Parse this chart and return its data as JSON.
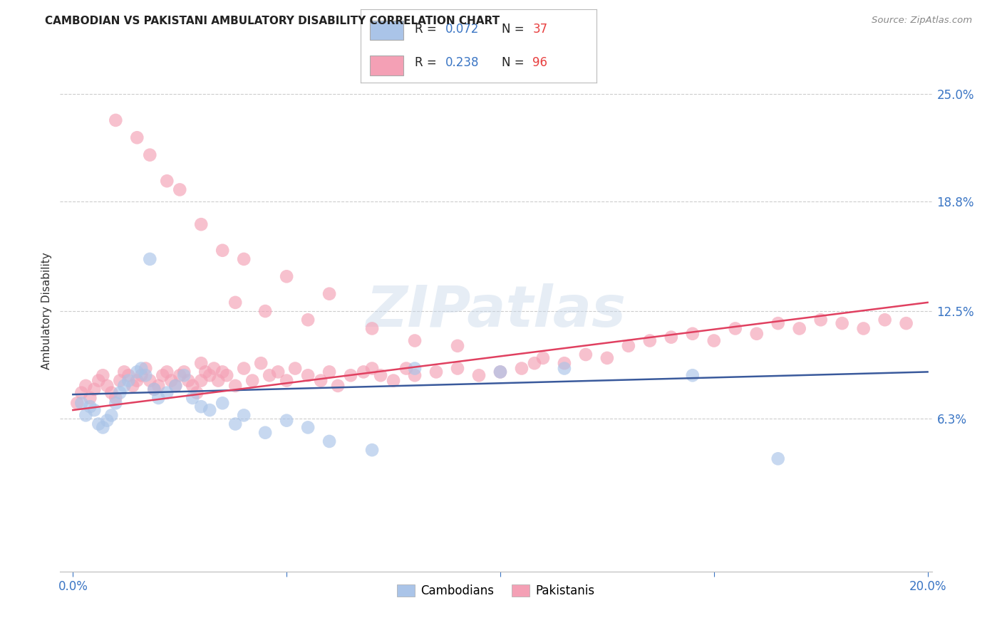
{
  "title": "CAMBODIAN VS PAKISTANI AMBULATORY DISABILITY CORRELATION CHART",
  "source": "Source: ZipAtlas.com",
  "ylabel": "Ambulatory Disability",
  "x_min": 0.0,
  "x_max": 0.2,
  "y_min": -0.025,
  "y_max": 0.275,
  "yticks": [
    0.063,
    0.125,
    0.188,
    0.25
  ],
  "ytick_labels": [
    "6.3%",
    "12.5%",
    "18.8%",
    "25.0%"
  ],
  "xticks": [
    0.0,
    0.05,
    0.1,
    0.15,
    0.2
  ],
  "xtick_labels": [
    "0.0%",
    "",
    "",
    "",
    "20.0%"
  ],
  "cambodian_color": "#aac4e8",
  "pakistani_color": "#f4a0b5",
  "line_cambodian_color": "#3a5a9c",
  "line_pakistani_color": "#e04060",
  "r_cambodian": 0.072,
  "n_cambodian": 37,
  "r_pakistani": 0.238,
  "n_pakistani": 96,
  "legend_r_color": "#3a75c4",
  "legend_n_color": "#e84040",
  "watermark": "ZIPatlas",
  "background_color": "#ffffff",
  "cam_line_x0": 0.0,
  "cam_line_y0": 0.077,
  "cam_line_x1": 0.2,
  "cam_line_y1": 0.09,
  "pak_line_x0": 0.0,
  "pak_line_y0": 0.068,
  "pak_line_x1": 0.2,
  "pak_line_y1": 0.13
}
